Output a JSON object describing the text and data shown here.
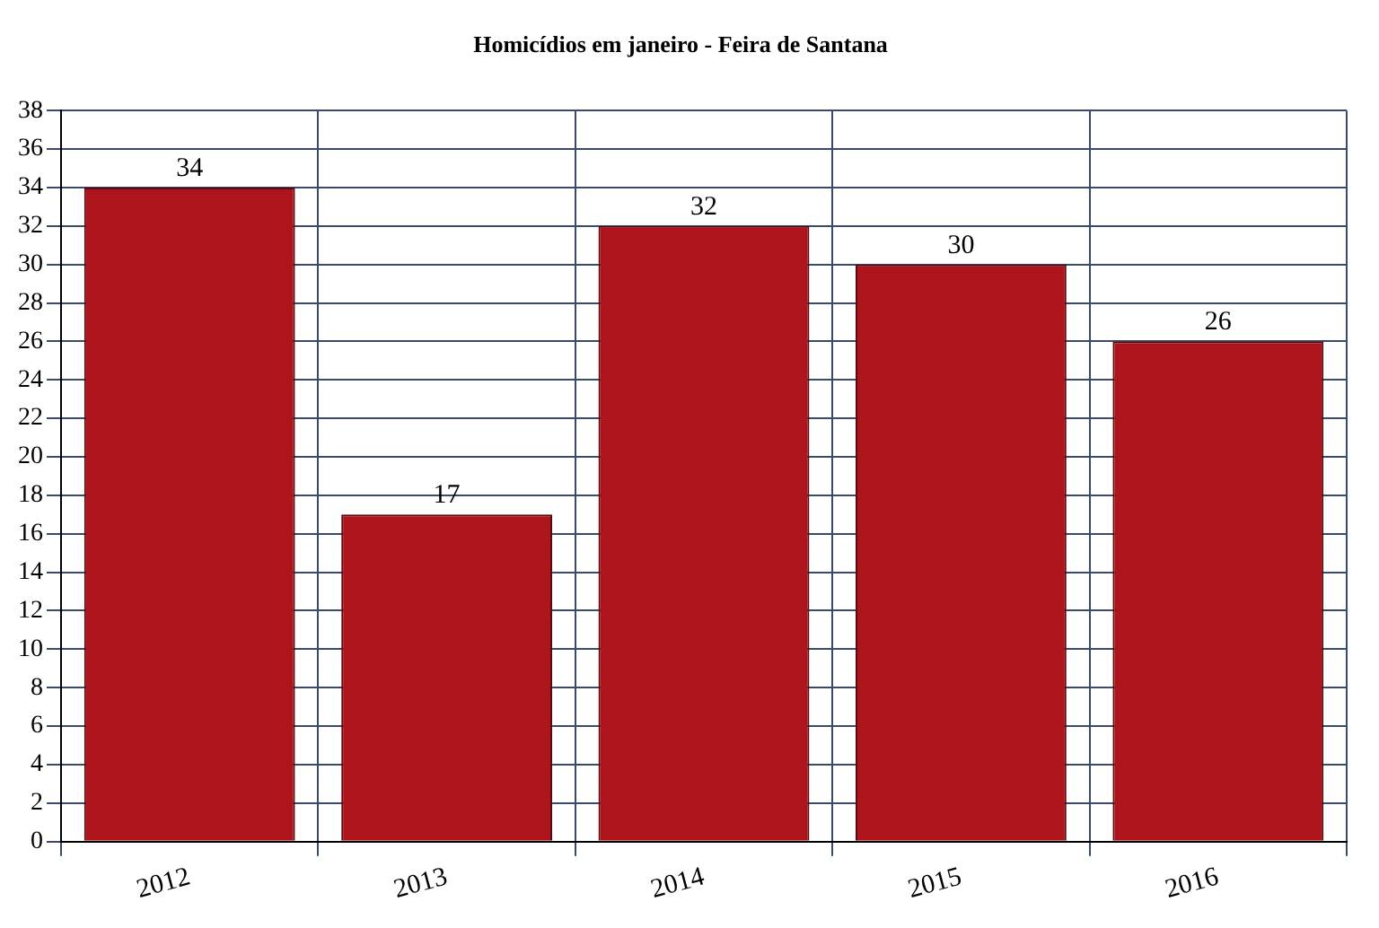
{
  "chart_data": {
    "type": "bar",
    "title": "Homicídios em janeiro - Feira de Santana",
    "categories": [
      "2012",
      "2013",
      "2014",
      "2015",
      "2016"
    ],
    "values": [
      34,
      17,
      32,
      30,
      26
    ],
    "color": "#ad141b",
    "ylim": [
      0,
      38
    ],
    "yticks": [
      0,
      2,
      4,
      6,
      8,
      10,
      12,
      14,
      16,
      18,
      20,
      22,
      24,
      26,
      28,
      30,
      32,
      34,
      36,
      38
    ],
    "grid": true,
    "data_labels": true,
    "legend": false
  }
}
